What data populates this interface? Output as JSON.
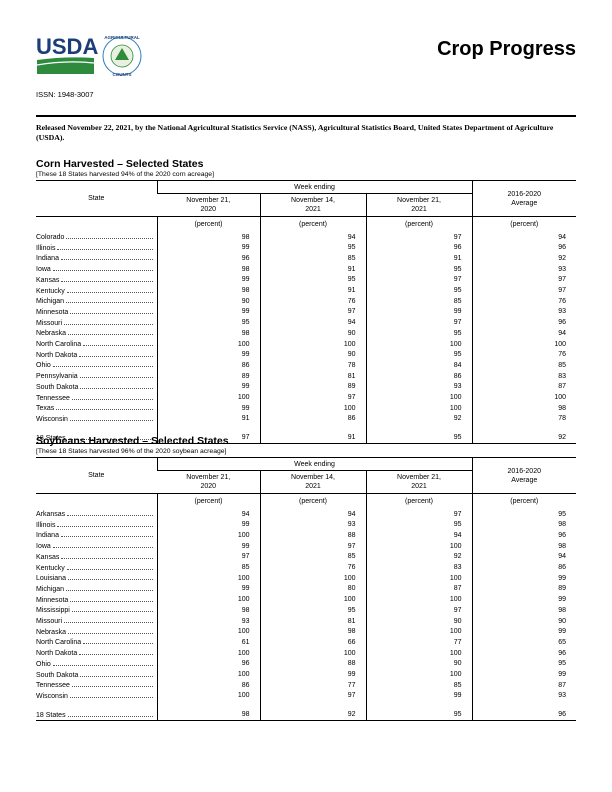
{
  "header": {
    "logo_text": "USDA",
    "seal_top": "AGRICULTURAL",
    "seal_bottom": "COUNTS",
    "title": "Crop Progress",
    "issn": "ISSN: 1948-3007",
    "release": "Released November 22, 2021, by the National Agricultural Statistics Service (NASS), Agricultural Statistics Board, United States Department of Agriculture (USDA)."
  },
  "tables": [
    {
      "title": "Corn Harvested – Selected States",
      "note": "[These 18 States harvested 94% of the 2020 corn acreage]",
      "state_header": "State",
      "week_header": "Week ending",
      "columns": [
        "November 21,\n2020",
        "November 14,\n2021",
        "November 21,\n2021"
      ],
      "average_header": "2016-2020\nAverage",
      "units": [
        "(percent)",
        "(percent)",
        "(percent)",
        "(percent)"
      ],
      "rows": [
        [
          "Colorado",
          98,
          94,
          97,
          94
        ],
        [
          "Illinois",
          99,
          95,
          96,
          96
        ],
        [
          "Indiana",
          96,
          85,
          91,
          92
        ],
        [
          "Iowa",
          98,
          91,
          95,
          93
        ],
        [
          "Kansas",
          99,
          95,
          97,
          97
        ],
        [
          "Kentucky",
          98,
          91,
          95,
          97
        ],
        [
          "Michigan",
          90,
          76,
          85,
          76
        ],
        [
          "Minnesota",
          99,
          97,
          99,
          93
        ],
        [
          "Missouri",
          95,
          94,
          97,
          96
        ],
        [
          "Nebraska",
          98,
          90,
          95,
          94
        ],
        [
          "North Carolina",
          100,
          100,
          100,
          100
        ],
        [
          "North Dakota",
          99,
          90,
          95,
          76
        ],
        [
          "Ohio",
          86,
          78,
          84,
          85
        ],
        [
          "Pennsylvania",
          89,
          81,
          86,
          83
        ],
        [
          "South Dakota",
          99,
          89,
          93,
          87
        ],
        [
          "Tennessee",
          100,
          97,
          100,
          100
        ],
        [
          "Texas",
          99,
          100,
          100,
          98
        ],
        [
          "Wisconsin",
          91,
          86,
          92,
          78
        ]
      ],
      "total": [
        "18 States",
        97,
        91,
        95,
        92
      ]
    },
    {
      "title": "Soybeans Harvested – Selected States",
      "note": "[These 18 States harvested 96% of the 2020 soybean acreage]",
      "state_header": "State",
      "week_header": "Week ending",
      "columns": [
        "November 21,\n2020",
        "November 14,\n2021",
        "November 21,\n2021"
      ],
      "average_header": "2016-2020\nAverage",
      "units": [
        "(percent)",
        "(percent)",
        "(percent)",
        "(percent)"
      ],
      "rows": [
        [
          "Arkansas",
          94,
          94,
          97,
          95
        ],
        [
          "Illinois",
          99,
          93,
          95,
          98
        ],
        [
          "Indiana",
          100,
          88,
          94,
          96
        ],
        [
          "Iowa",
          99,
          97,
          100,
          98
        ],
        [
          "Kansas",
          97,
          85,
          92,
          94
        ],
        [
          "Kentucky",
          85,
          76,
          83,
          86
        ],
        [
          "Louisiana",
          100,
          100,
          100,
          99
        ],
        [
          "Michigan",
          99,
          80,
          87,
          89
        ],
        [
          "Minnesota",
          100,
          100,
          100,
          99
        ],
        [
          "Mississippi",
          98,
          95,
          97,
          98
        ],
        [
          "Missouri",
          93,
          81,
          90,
          90
        ],
        [
          "Nebraska",
          100,
          98,
          100,
          99
        ],
        [
          "North Carolina",
          61,
          66,
          77,
          65
        ],
        [
          "North Dakota",
          100,
          100,
          100,
          96
        ],
        [
          "Ohio",
          96,
          88,
          90,
          95
        ],
        [
          "South Dakota",
          100,
          99,
          100,
          99
        ],
        [
          "Tennessee",
          86,
          77,
          85,
          87
        ],
        [
          "Wisconsin",
          100,
          97,
          99,
          93
        ]
      ],
      "total": [
        "18 States",
        98,
        92,
        95,
        96
      ]
    }
  ]
}
